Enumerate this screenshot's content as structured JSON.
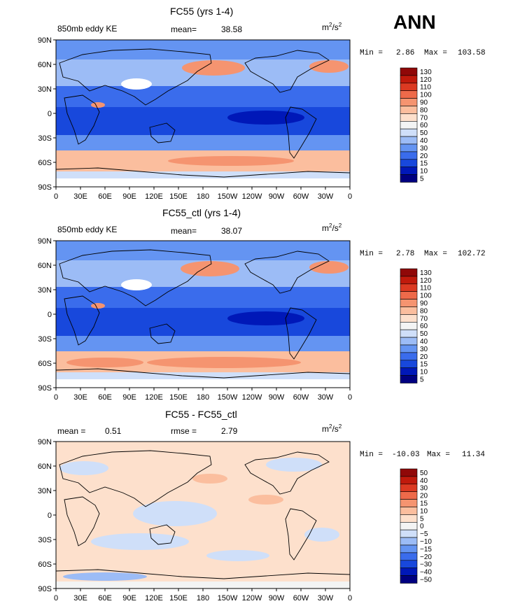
{
  "season": "ANN",
  "colors": {
    "abs_scale": [
      "#000080",
      "#0018b8",
      "#1848dc",
      "#3a6cec",
      "#6494f2",
      "#9cbcf6",
      "#cfdff9",
      "#f3f4f4",
      "#fde0cc",
      "#fbbe9e",
      "#f59470",
      "#ee6a4a",
      "#dc3a22",
      "#c01a0c",
      "#900808"
    ],
    "diff_scale": [
      "#000080",
      "#0018b8",
      "#1848dc",
      "#3a6cec",
      "#6494f2",
      "#9cbcf6",
      "#cfdff9",
      "#f3f4f4",
      "#fde0cc",
      "#fbbe9e",
      "#f59470",
      "#ee6a4a",
      "#dc3a22",
      "#c01a0c",
      "#900808"
    ],
    "land": "#000000",
    "missing": "#ffffff"
  },
  "chart_data": [
    {
      "type": "heatmap",
      "title": "FC55 (yrs 1-4)",
      "field_label": "850mb eddy KE",
      "stat_label": "mean=",
      "stat_value": "38.58",
      "units": "m2/s2",
      "units_base": "m",
      "units_exp": "2",
      "units_sep": "/s",
      "min_label": "Min =",
      "min_value": "2.86",
      "max_label": "Max =",
      "max_value": "103.58",
      "lat_ticks": [
        "90N",
        "60N",
        "30N",
        "0",
        "30S",
        "60S",
        "90S"
      ],
      "lon_ticks": [
        "0",
        "30E",
        "60E",
        "90E",
        "120E",
        "150E",
        "180",
        "150W",
        "120W",
        "90W",
        "60W",
        "30W",
        "0"
      ],
      "colorbar_levels": [
        "130",
        "120",
        "110",
        "100",
        "90",
        "80",
        "70",
        "60",
        "50",
        "40",
        "30",
        "20",
        "15",
        "10",
        "5"
      ]
    },
    {
      "type": "heatmap",
      "title": "FC55_ctl (yrs 1-4)",
      "field_label": "850mb eddy KE",
      "stat_label": "mean=",
      "stat_value": "38.07",
      "units": "m2/s2",
      "units_base": "m",
      "units_exp": "2",
      "units_sep": "/s",
      "min_label": "Min =",
      "min_value": "2.78",
      "max_label": "Max =",
      "max_value": "102.72",
      "lat_ticks": [
        "90N",
        "60N",
        "30N",
        "0",
        "30S",
        "60S",
        "90S"
      ],
      "lon_ticks": [
        "0",
        "30E",
        "60E",
        "90E",
        "120E",
        "150E",
        "180",
        "150W",
        "120W",
        "90W",
        "60W",
        "30W",
        "0"
      ],
      "colorbar_levels": [
        "130",
        "120",
        "110",
        "100",
        "90",
        "80",
        "70",
        "60",
        "50",
        "40",
        "30",
        "20",
        "15",
        "10",
        "5"
      ]
    },
    {
      "type": "heatmap",
      "title": "FC55 - FC55_ctl",
      "stat_label": "mean =",
      "stat_value": "0.51",
      "rmse_label": "rmse =",
      "rmse_value": "2.79",
      "units": "m2/s2",
      "units_base": "m",
      "units_exp": "2",
      "units_sep": "/s",
      "min_label": "Min =",
      "min_value": "-10.03",
      "max_label": "Max =",
      "max_value": "11.34",
      "lat_ticks": [
        "90N",
        "60N",
        "30N",
        "0",
        "30S",
        "60S",
        "90S"
      ],
      "lon_ticks": [
        "0",
        "30E",
        "60E",
        "90E",
        "120E",
        "150E",
        "180",
        "150W",
        "120W",
        "90W",
        "60W",
        "30W",
        "0"
      ],
      "colorbar_levels": [
        "50",
        "40",
        "30",
        "20",
        "15",
        "10",
        "5",
        "0",
        "−5",
        "−10",
        "−15",
        "−20",
        "−30",
        "−40",
        "−50"
      ]
    }
  ]
}
